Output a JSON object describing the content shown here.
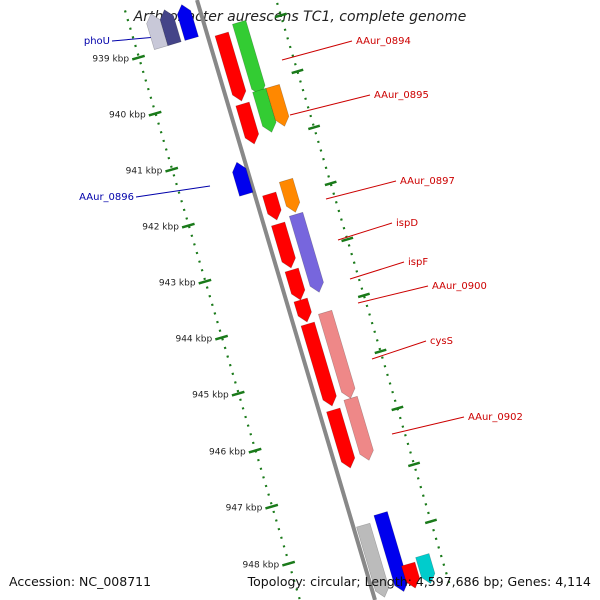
{
  "title": "Arthrobacter aurescens TC1, complete genome",
  "footer": {
    "accession": "Accession: NC_008711",
    "summary": "Topology: circular; Length: 4,597,686 bp; Genes: 4,114"
  },
  "colors": {
    "backbone": "#888888",
    "tick": "#1a7a1a",
    "label_forward": "#cc0000",
    "label_reverse": "#0000aa"
  },
  "scale": {
    "ticks": [
      "939 kbp",
      "940 kbp",
      "941 kbp",
      "942 kbp",
      "943 kbp",
      "944 kbp",
      "945 kbp",
      "946 kbp",
      "947 kbp",
      "948 kbp"
    ]
  },
  "features": [
    {
      "label": "phoU",
      "strand": "reverse",
      "color": "#0000ee"
    },
    {
      "label": "",
      "strand": "reverse",
      "color": "#444488"
    },
    {
      "label": "",
      "strand": "reverse",
      "color": "#c8c8d8"
    },
    {
      "label": "AAur_0894",
      "strand": "forward",
      "color": "#ff0000"
    },
    {
      "label": "",
      "strand": "forward",
      "color": "#33cc33"
    },
    {
      "label": "AAur_0895",
      "strand": "forward",
      "color": "#ff0000"
    },
    {
      "label": "",
      "strand": "forward",
      "color": "#33cc33"
    },
    {
      "label": "",
      "strand": "forward",
      "color": "#ff8800"
    },
    {
      "label": "AAur_0896",
      "strand": "reverse",
      "color": "#0000ee"
    },
    {
      "label": "AAur_0897",
      "strand": "forward",
      "color": "#ff0000"
    },
    {
      "label": "",
      "strand": "forward",
      "color": "#ff8800"
    },
    {
      "label": "ispD",
      "strand": "forward",
      "color": "#ff0000"
    },
    {
      "label": "",
      "strand": "forward",
      "color": "#7766dd"
    },
    {
      "label": "ispF",
      "strand": "forward",
      "color": "#ff0000"
    },
    {
      "label": "AAur_0900",
      "strand": "forward",
      "color": "#ff0000"
    },
    {
      "label": "cysS",
      "strand": "forward",
      "color": "#ff0000"
    },
    {
      "label": "",
      "strand": "forward",
      "color": "#ee8888"
    },
    {
      "label": "AAur_0902",
      "strand": "forward",
      "color": "#ff0000"
    },
    {
      "label": "",
      "strand": "forward",
      "color": "#ee8888"
    },
    {
      "label": "",
      "strand": "forward",
      "color": "#bbbbbb"
    },
    {
      "label": "",
      "strand": "forward",
      "color": "#0000ee"
    },
    {
      "label": "",
      "strand": "forward",
      "color": "#ff0000"
    },
    {
      "label": "",
      "strand": "forward",
      "color": "#00cccc"
    }
  ]
}
